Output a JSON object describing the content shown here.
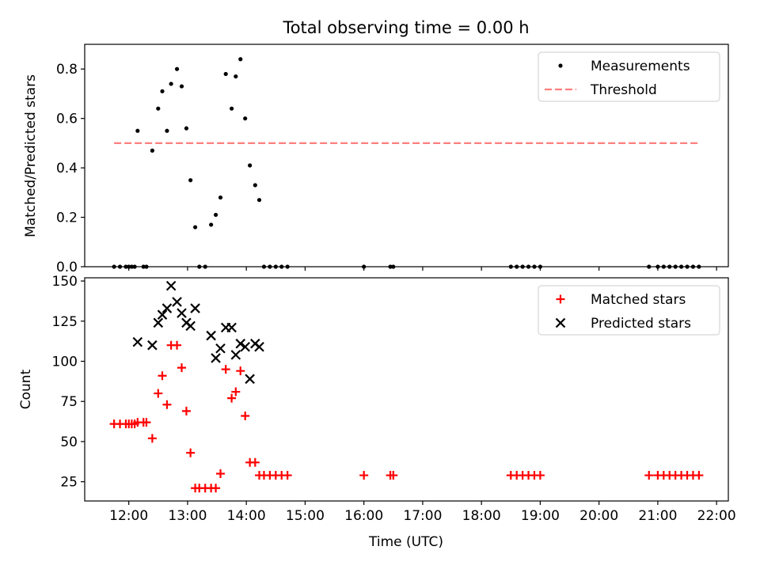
{
  "chart_data": {
    "title": "Total observing time = 0.00 h",
    "x_ticks": [
      "12:00",
      "13:00",
      "14:00",
      "15:00",
      "16:00",
      "17:00",
      "18:00",
      "19:00",
      "20:00",
      "21:00",
      "22:00"
    ],
    "x_range_hours": [
      11.25,
      22.2
    ],
    "xlabel": "Time (UTC)",
    "panels": [
      {
        "type": "scatter",
        "ylabel": "Matched/Predicted stars",
        "ylim": [
          0,
          0.9
        ],
        "y_ticks": [
          "0.0",
          "0.2",
          "0.4",
          "0.6",
          "0.8"
        ],
        "y_tick_values": [
          0,
          0.2,
          0.4,
          0.6,
          0.8
        ],
        "legend_position": "top-right",
        "series": [
          {
            "name": "Measurements",
            "marker": "dot",
            "color": "#000000",
            "points": [
              [
                11.75,
                0
              ],
              [
                11.85,
                0
              ],
              [
                11.95,
                0
              ],
              [
                12.0,
                0
              ],
              [
                12.05,
                0
              ],
              [
                12.1,
                0
              ],
              [
                12.25,
                0
              ],
              [
                12.3,
                0
              ],
              [
                13.2,
                0
              ],
              [
                13.3,
                0
              ],
              [
                14.3,
                0
              ],
              [
                14.4,
                0
              ],
              [
                14.5,
                0
              ],
              [
                14.6,
                0
              ],
              [
                14.7,
                0
              ],
              [
                16.0,
                0
              ],
              [
                16.45,
                0
              ],
              [
                16.5,
                0
              ],
              [
                18.5,
                0
              ],
              [
                18.6,
                0
              ],
              [
                18.7,
                0
              ],
              [
                18.8,
                0
              ],
              [
                18.9,
                0
              ],
              [
                19.0,
                0
              ],
              [
                20.85,
                0
              ],
              [
                21.0,
                0
              ],
              [
                21.1,
                0
              ],
              [
                21.2,
                0
              ],
              [
                21.3,
                0
              ],
              [
                21.4,
                0
              ],
              [
                21.5,
                0
              ],
              [
                21.6,
                0
              ],
              [
                21.7,
                0
              ],
              [
                12.15,
                0.55
              ],
              [
                12.4,
                0.47
              ],
              [
                12.5,
                0.64
              ],
              [
                12.57,
                0.71
              ],
              [
                12.65,
                0.55
              ],
              [
                12.72,
                0.74
              ],
              [
                12.82,
                0.8
              ],
              [
                12.9,
                0.73
              ],
              [
                12.98,
                0.56
              ],
              [
                13.05,
                0.35
              ],
              [
                13.13,
                0.16
              ],
              [
                13.4,
                0.17
              ],
              [
                13.48,
                0.21
              ],
              [
                13.56,
                0.28
              ],
              [
                13.65,
                0.78
              ],
              [
                13.75,
                0.64
              ],
              [
                13.82,
                0.77
              ],
              [
                13.9,
                0.84
              ],
              [
                13.98,
                0.6
              ],
              [
                14.06,
                0.41
              ],
              [
                14.15,
                0.33
              ],
              [
                14.22,
                0.27
              ]
            ]
          },
          {
            "name": "Threshold",
            "style": "dashed",
            "color": "#ff7f7f",
            "x": [
              11.75,
              21.7
            ],
            "y": [
              0.5,
              0.5
            ]
          }
        ]
      },
      {
        "type": "scatter",
        "ylabel": "Count",
        "ylim": [
          13,
          152
        ],
        "y_ticks": [
          "25",
          "50",
          "75",
          "100",
          "125",
          "150"
        ],
        "y_tick_values": [
          25,
          50,
          75,
          100,
          125,
          150
        ],
        "legend_position": "top-right",
        "series": [
          {
            "name": "Matched stars",
            "marker": "plus",
            "color": "#ff0000",
            "points": [
              [
                11.75,
                61
              ],
              [
                11.85,
                61
              ],
              [
                11.95,
                61
              ],
              [
                12.0,
                61
              ],
              [
                12.05,
                61
              ],
              [
                12.1,
                61
              ],
              [
                12.15,
                62
              ],
              [
                12.25,
                62
              ],
              [
                12.3,
                62
              ],
              [
                12.4,
                52
              ],
              [
                12.5,
                80
              ],
              [
                12.57,
                91
              ],
              [
                12.65,
                73
              ],
              [
                12.72,
                110
              ],
              [
                12.82,
                110
              ],
              [
                12.9,
                96
              ],
              [
                12.98,
                69
              ],
              [
                13.05,
                43
              ],
              [
                13.13,
                21
              ],
              [
                13.2,
                21
              ],
              [
                13.3,
                21
              ],
              [
                13.4,
                21
              ],
              [
                13.48,
                21
              ],
              [
                13.56,
                30
              ],
              [
                13.65,
                95
              ],
              [
                13.75,
                77
              ],
              [
                13.82,
                81
              ],
              [
                13.9,
                94
              ],
              [
                13.98,
                66
              ],
              [
                14.06,
                37
              ],
              [
                14.15,
                37
              ],
              [
                14.22,
                29
              ],
              [
                14.3,
                29
              ],
              [
                14.4,
                29
              ],
              [
                14.5,
                29
              ],
              [
                14.6,
                29
              ],
              [
                14.7,
                29
              ],
              [
                16.0,
                29
              ],
              [
                16.45,
                29
              ],
              [
                16.5,
                29
              ],
              [
                18.5,
                29
              ],
              [
                18.6,
                29
              ],
              [
                18.7,
                29
              ],
              [
                18.8,
                29
              ],
              [
                18.9,
                29
              ],
              [
                19.0,
                29
              ],
              [
                20.85,
                29
              ],
              [
                21.0,
                29
              ],
              [
                21.1,
                29
              ],
              [
                21.2,
                29
              ],
              [
                21.3,
                29
              ],
              [
                21.4,
                29
              ],
              [
                21.5,
                29
              ],
              [
                21.6,
                29
              ],
              [
                21.7,
                29
              ]
            ]
          },
          {
            "name": "Predicted stars",
            "marker": "x",
            "color": "#000000",
            "points": [
              [
                12.15,
                112
              ],
              [
                12.4,
                110
              ],
              [
                12.5,
                124
              ],
              [
                12.57,
                129
              ],
              [
                12.65,
                133
              ],
              [
                12.72,
                147
              ],
              [
                12.82,
                137
              ],
              [
                12.9,
                130
              ],
              [
                12.98,
                124
              ],
              [
                13.05,
                122
              ],
              [
                13.13,
                133
              ],
              [
                13.4,
                116
              ],
              [
                13.48,
                102
              ],
              [
                13.56,
                108
              ],
              [
                13.65,
                121
              ],
              [
                13.75,
                121
              ],
              [
                13.82,
                104
              ],
              [
                13.9,
                111
              ],
              [
                13.98,
                109
              ],
              [
                14.06,
                89
              ],
              [
                14.15,
                111
              ],
              [
                14.22,
                109
              ]
            ]
          }
        ]
      }
    ]
  }
}
